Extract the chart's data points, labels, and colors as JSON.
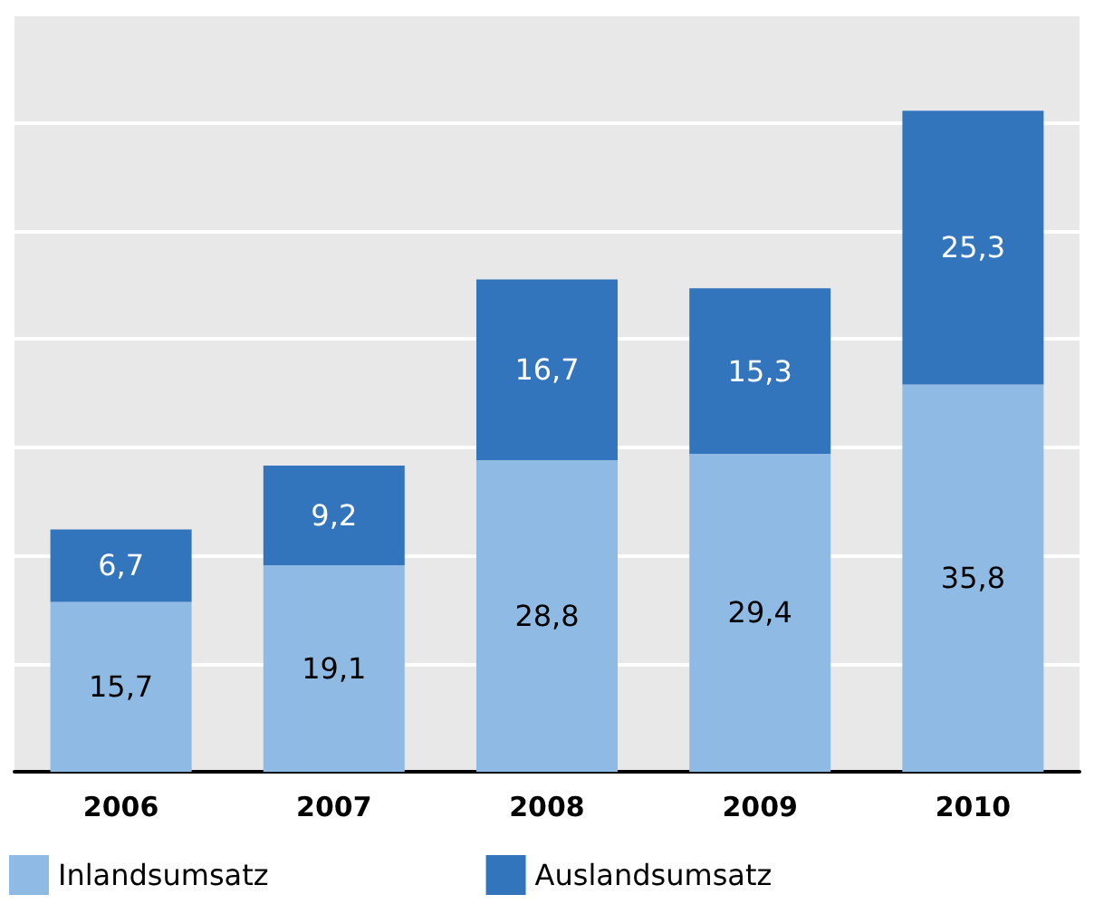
{
  "chart_data": {
    "type": "bar",
    "stacked": true,
    "categories": [
      "2006",
      "2007",
      "2008",
      "2009",
      "2010"
    ],
    "series": [
      {
        "name": "Inlandsumsatz",
        "color": "#8fbae3",
        "values": [
          15.7,
          19.1,
          28.8,
          29.4,
          35.8
        ],
        "value_labels": [
          "15,7",
          "19,1",
          "28,8",
          "29,4",
          "35,8"
        ]
      },
      {
        "name": "Auslandsumsatz",
        "color": "#3375bc",
        "values": [
          6.7,
          9.2,
          16.7,
          15.3,
          25.3
        ],
        "value_labels": [
          "6,7",
          "9,2",
          "16,7",
          "15,3",
          "25,3"
        ]
      }
    ],
    "ylim": [
      0,
      70
    ],
    "yticks": [
      {
        "value": 0,
        "label": null
      },
      {
        "value": 10,
        "label": null
      },
      {
        "value": 20,
        "label": null
      },
      {
        "value": 30,
        "label": null
      },
      {
        "value": 40,
        "label": null
      },
      {
        "value": 50,
        "label": null
      },
      {
        "value": 60,
        "label": null
      },
      {
        "value": 70,
        "label": null
      }
    ],
    "tick_labels": "x",
    "grid": "y",
    "legend": "bottom left"
  }
}
